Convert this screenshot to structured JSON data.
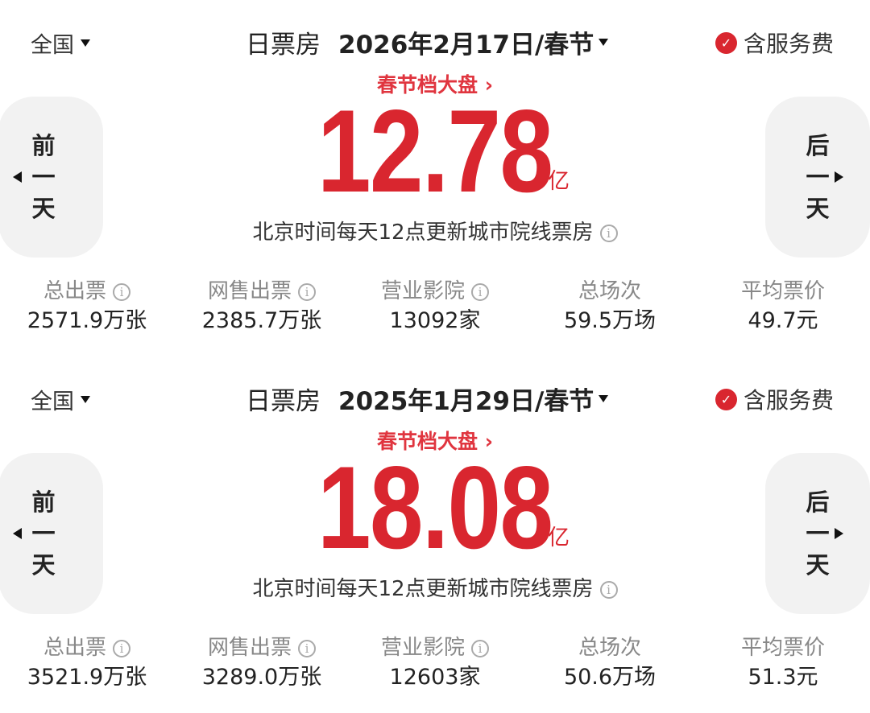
{
  "colors": {
    "accent": "#d9262f",
    "side_button_bg": "#f2f2f2"
  },
  "panels": [
    {
      "region": "全国",
      "title": "日票房",
      "date": "2026年2月17日/春节",
      "fee_label": "含服务费",
      "link": "春节档大盘 ›",
      "amount": "12.78",
      "unit": "亿",
      "note": "北京时间每天12点更新城市院线票房",
      "prev": [
        "前",
        "一",
        "天"
      ],
      "next": [
        "后",
        "一",
        "天"
      ],
      "stats": [
        {
          "label": "总出票",
          "value": "2571.9万张",
          "info": true
        },
        {
          "label": "网售出票",
          "value": "2385.7万张",
          "info": true
        },
        {
          "label": "营业影院",
          "value": "13092家",
          "info": true
        },
        {
          "label": "总场次",
          "value": "59.5万场",
          "info": false
        },
        {
          "label": "平均票价",
          "value": "49.7元",
          "info": false
        }
      ]
    },
    {
      "region": "全国",
      "title": "日票房",
      "date": "2025年1月29日/春节",
      "fee_label": "含服务费",
      "link": "春节档大盘 ›",
      "amount": "18.08",
      "unit": "亿",
      "note": "北京时间每天12点更新城市院线票房",
      "prev": [
        "前",
        "一",
        "天"
      ],
      "next": [
        "后",
        "一",
        "天"
      ],
      "stats": [
        {
          "label": "总出票",
          "value": "3521.9万张",
          "info": true
        },
        {
          "label": "网售出票",
          "value": "3289.0万张",
          "info": true
        },
        {
          "label": "营业影院",
          "value": "12603家",
          "info": true
        },
        {
          "label": "总场次",
          "value": "50.6万场",
          "info": false
        },
        {
          "label": "平均票价",
          "value": "51.3元",
          "info": false
        }
      ]
    }
  ]
}
